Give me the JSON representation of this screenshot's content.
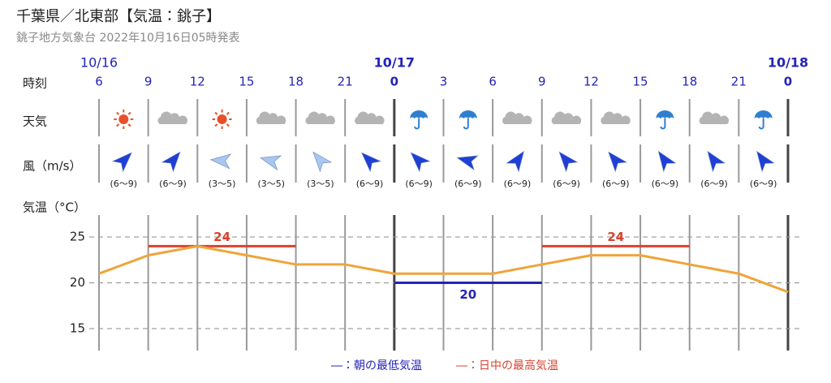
{
  "header": {
    "title": "千葉県／北東部【気温：銚子】",
    "subtitle": "銚子地方気象台 2022年10月16日05時発表"
  },
  "row_labels": {
    "time": "時刻",
    "weather": "天気",
    "wind": "風（m/s）",
    "temp": "気温（°C）"
  },
  "chart_data": {
    "type": "line",
    "categories": [
      "6",
      "9",
      "12",
      "15",
      "18",
      "21",
      "0",
      "3",
      "6",
      "9",
      "12",
      "15",
      "18",
      "21",
      "0"
    ],
    "date_labels": [
      "10/16",
      null,
      null,
      null,
      null,
      null,
      "10/17",
      null,
      null,
      null,
      null,
      null,
      null,
      null,
      "10/18"
    ],
    "weather": [
      "sun",
      "cloud",
      "sun",
      "cloud",
      "cloud",
      "cloud",
      "rain",
      "rain",
      "cloud",
      "cloud",
      "cloud",
      "rain",
      "cloud",
      "rain"
    ],
    "wind": [
      {
        "label": "(6〜9)",
        "direction": 45,
        "color": "#1f3fd6"
      },
      {
        "label": "(6〜9)",
        "direction": 40,
        "color": "#1f3fd6"
      },
      {
        "label": "(3〜5)",
        "direction": 275,
        "color": "#a9c6ef"
      },
      {
        "label": "(3〜5)",
        "direction": 285,
        "color": "#a9c6ef"
      },
      {
        "label": "(3〜5)",
        "direction": 320,
        "color": "#a9c6ef"
      },
      {
        "label": "(6〜9)",
        "direction": 315,
        "color": "#1f3fd6"
      },
      {
        "label": "(6〜9)",
        "direction": 315,
        "color": "#1f3fd6"
      },
      {
        "label": "(6〜9)",
        "direction": 285,
        "color": "#1f3fd6"
      },
      {
        "label": "(6〜9)",
        "direction": 35,
        "color": "#1f3fd6"
      },
      {
        "label": "(6〜9)",
        "direction": 320,
        "color": "#1f3fd6"
      },
      {
        "label": "(6〜9)",
        "direction": 320,
        "color": "#1f3fd6"
      },
      {
        "label": "(6〜9)",
        "direction": 325,
        "color": "#1f3fd6"
      },
      {
        "label": "(6〜9)",
        "direction": 325,
        "color": "#1f3fd6"
      },
      {
        "label": "(6〜9)",
        "direction": 325,
        "color": "#1f3fd6"
      }
    ],
    "values": [
      21,
      23,
      24,
      23,
      22,
      22,
      21,
      21,
      21,
      22,
      23,
      23,
      22,
      21,
      19
    ],
    "color": "#f0a43a",
    "ylim": [
      12.6,
      27.4
    ],
    "yticks": [
      15,
      20,
      25
    ],
    "grid": true,
    "lows": {
      "legend": "―：朝の最低気温",
      "color": "#2424b8",
      "bars": [
        {
          "value": 20,
          "span": [
            6,
            9
          ]
        }
      ]
    },
    "highs": {
      "legend": "―：日中の最高気温",
      "color": "#d9422e",
      "bars": [
        {
          "value": 24,
          "span": [
            1,
            4
          ]
        },
        {
          "value": 24,
          "span": [
            9,
            12
          ]
        }
      ]
    }
  }
}
